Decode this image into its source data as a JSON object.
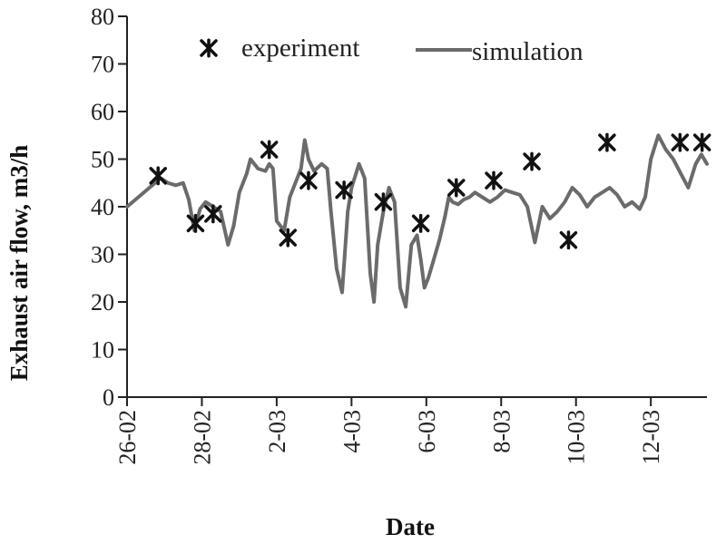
{
  "chart_data": {
    "type": "line",
    "xlabel": "Date",
    "ylabel": "Exhaust air flow,  m3/h",
    "ylim": [
      0,
      80
    ],
    "yticks": [
      0,
      10,
      20,
      30,
      40,
      50,
      60,
      70,
      80
    ],
    "xlim": [
      0,
      15.5
    ],
    "x_tick_labels": [
      "26-02",
      "28-02",
      "2-03",
      "4-03",
      "6-03",
      "8-03",
      "10-03",
      "12-03"
    ],
    "x_tick_positions": [
      0,
      2,
      4,
      6,
      8,
      10,
      12,
      14
    ],
    "grid": false,
    "legend_position": "top",
    "colors": {
      "simulation": "#6b6b6b",
      "experiment": "#111111"
    },
    "series": [
      {
        "name": "experiment",
        "marker": "asterisk",
        "x": [
          0.83,
          1.83,
          2.3,
          3.8,
          4.3,
          4.85,
          5.8,
          6.85,
          7.85,
          8.8,
          9.8,
          10.82,
          11.8,
          12.83,
          14.78,
          15.37
        ],
        "y": [
          46.5,
          36.5,
          38.5,
          52.0,
          33.5,
          45.5,
          43.5,
          41.0,
          36.5,
          44.0,
          45.5,
          49.5,
          33.0,
          53.5,
          53.5,
          53.5
        ]
      },
      {
        "name": "simulation",
        "x": [
          0,
          0.3,
          0.6,
          0.9,
          1.1,
          1.3,
          1.5,
          1.65,
          1.8,
          1.95,
          2.1,
          2.3,
          2.5,
          2.7,
          2.85,
          3.0,
          3.1,
          3.2,
          3.3,
          3.5,
          3.7,
          3.8,
          3.9,
          4.0,
          4.2,
          4.35,
          4.5,
          4.65,
          4.75,
          4.85,
          5.0,
          5.2,
          5.35,
          5.45,
          5.6,
          5.75,
          5.9,
          6.0,
          6.2,
          6.35,
          6.5,
          6.6,
          6.7,
          6.85,
          7.0,
          7.15,
          7.3,
          7.45,
          7.6,
          7.75,
          7.85,
          7.95,
          8.05,
          8.2,
          8.35,
          8.5,
          8.6,
          8.7,
          8.85,
          9.0,
          9.15,
          9.3,
          9.5,
          9.7,
          9.9,
          10.1,
          10.3,
          10.5,
          10.7,
          10.9,
          11.1,
          11.3,
          11.5,
          11.7,
          11.9,
          12.1,
          12.3,
          12.5,
          12.7,
          12.9,
          13.1,
          13.3,
          13.5,
          13.7,
          13.85,
          14.0,
          14.2,
          14.4,
          14.6,
          14.8,
          15.0,
          15.2,
          15.35,
          15.5
        ],
        "y": [
          40,
          42,
          44,
          46,
          45,
          44.5,
          45,
          41.5,
          35,
          39.5,
          41,
          40,
          39,
          32,
          36,
          43,
          45,
          47,
          50,
          48,
          47.5,
          49,
          48,
          37,
          35,
          42,
          45,
          48,
          54,
          50,
          47.5,
          49,
          48,
          39,
          27,
          22,
          39,
          44,
          49,
          46,
          26,
          20,
          32,
          39,
          44,
          41,
          23,
          19,
          32,
          34,
          29,
          23,
          25,
          29,
          33,
          38,
          42,
          41,
          40.5,
          41.5,
          42,
          43,
          42,
          41,
          42,
          43.5,
          43,
          42.5,
          40,
          32.5,
          40,
          37.5,
          39,
          41,
          44,
          42.5,
          40,
          42,
          43,
          44,
          42.5,
          40,
          41,
          39.5,
          42,
          50,
          55,
          52,
          50,
          47,
          44,
          49,
          51,
          49
        ]
      }
    ]
  }
}
